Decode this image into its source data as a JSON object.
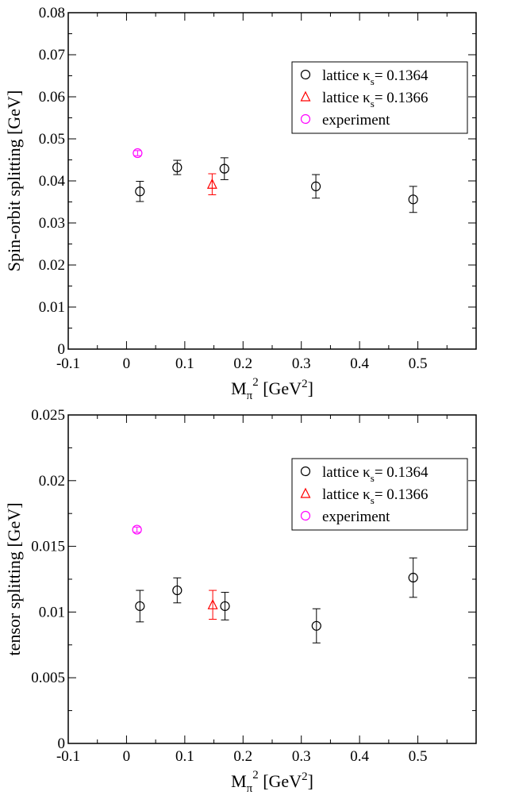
{
  "chart_data": [
    {
      "type": "scatter",
      "xlabel": "M_π^2 [GeV^2]",
      "ylabel": "Spin-orbit splitting [GeV]",
      "xlim": [
        -0.1,
        0.6
      ],
      "ylim": [
        0,
        0.08
      ],
      "x_ticks": [
        -0.1,
        0,
        0.1,
        0.2,
        0.3,
        0.4,
        0.5
      ],
      "x_tick_labels": [
        "-0.1",
        "0",
        "0.1",
        "0.2",
        "0.3",
        "0.4",
        "0.5"
      ],
      "y_ticks": [
        0,
        0.01,
        0.02,
        0.03,
        0.04,
        0.05,
        0.06,
        0.07,
        0.08
      ],
      "y_tick_labels": [
        "0",
        "0.01",
        "0.02",
        "0.03",
        "0.04",
        "0.05",
        "0.06",
        "0.07",
        "0.08"
      ],
      "legend_position": "top-right",
      "grid": false,
      "series": [
        {
          "name": "lattice κs = 0.1364",
          "label_main": "lattice κ",
          "label_sub": "s",
          "label_value": "= 0.1364",
          "marker": "circle",
          "color": "#000000",
          "points": [
            {
              "x": 0.023,
              "y": 0.0375,
              "err": 0.0024
            },
            {
              "x": 0.087,
              "y": 0.0432,
              "err": 0.0017
            },
            {
              "x": 0.168,
              "y": 0.0429,
              "err": 0.0026
            },
            {
              "x": 0.325,
              "y": 0.0387,
              "err": 0.0028
            },
            {
              "x": 0.492,
              "y": 0.0356,
              "err": 0.0031
            }
          ]
        },
        {
          "name": "lattice κs = 0.1366",
          "label_main": "lattice κ",
          "label_sub": "s",
          "label_value": "= 0.1366",
          "marker": "triangle",
          "color": "#ff0000",
          "points": [
            {
              "x": 0.147,
              "y": 0.0392,
              "err": 0.0025
            }
          ]
        },
        {
          "name": "experiment",
          "label_main": "experiment",
          "label_sub": "",
          "label_value": "",
          "marker": "circle",
          "color": "#ff00ff",
          "points": [
            {
              "x": 0.019,
              "y": 0.0466,
              "err": 0.0006
            }
          ]
        }
      ]
    },
    {
      "type": "scatter",
      "xlabel": "M_π^2 [GeV^2]",
      "ylabel": "tensor splitting [GeV]",
      "xlim": [
        -0.1,
        0.6
      ],
      "ylim": [
        0,
        0.025
      ],
      "x_ticks": [
        -0.1,
        0,
        0.1,
        0.2,
        0.3,
        0.4,
        0.5
      ],
      "x_tick_labels": [
        "-0.1",
        "0",
        "0.1",
        "0.2",
        "0.3",
        "0.4",
        "0.5"
      ],
      "y_ticks": [
        0,
        0.005,
        0.01,
        0.015,
        0.02,
        0.025
      ],
      "y_tick_labels": [
        "0",
        "0.005",
        "0.01",
        "0.015",
        "0.02",
        "0.025"
      ],
      "legend_position": "top-right",
      "grid": false,
      "series": [
        {
          "name": "lattice κs = 0.1364",
          "label_main": "lattice κ",
          "label_sub": "s",
          "label_value": "= 0.1364",
          "marker": "circle",
          "color": "#000000",
          "points": [
            {
              "x": 0.023,
              "y": 0.01045,
              "err": 0.0012
            },
            {
              "x": 0.087,
              "y": 0.01165,
              "err": 0.00095
            },
            {
              "x": 0.169,
              "y": 0.01045,
              "err": 0.00105
            },
            {
              "x": 0.326,
              "y": 0.00895,
              "err": 0.0013
            },
            {
              "x": 0.492,
              "y": 0.01262,
              "err": 0.0015
            }
          ]
        },
        {
          "name": "lattice κs = 0.1366",
          "label_main": "lattice κ",
          "label_sub": "s",
          "label_value": "= 0.1366",
          "marker": "triangle",
          "color": "#ff0000",
          "points": [
            {
              "x": 0.148,
              "y": 0.01055,
              "err": 0.0011
            }
          ]
        },
        {
          "name": "experiment",
          "label_main": "experiment",
          "label_sub": "",
          "label_value": "",
          "marker": "circle",
          "color": "#ff00ff",
          "points": [
            {
              "x": 0.018,
              "y": 0.01627,
              "err": 0.0002
            }
          ]
        }
      ]
    }
  ]
}
